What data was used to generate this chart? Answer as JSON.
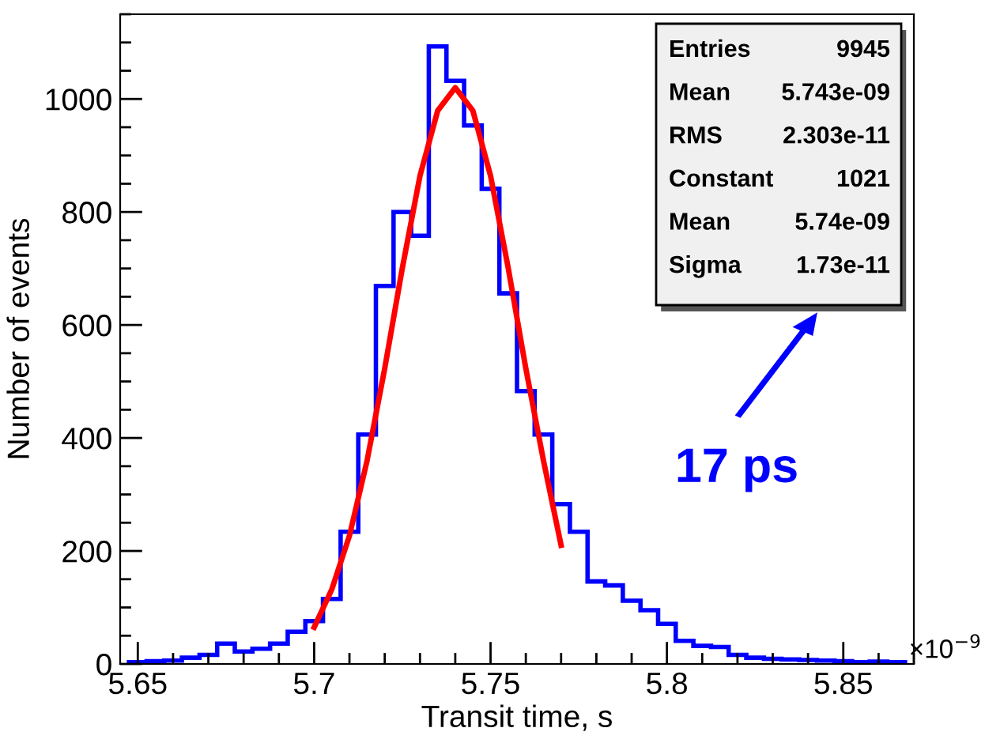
{
  "chart_data": {
    "type": "histogram",
    "xlabel": "Transit time, s",
    "ylabel": "Number of events",
    "bins": [
      5.6475,
      5.6525,
      5.6575,
      5.6625,
      5.6675,
      5.6725,
      5.6775,
      5.6825,
      5.6875,
      5.6925,
      5.6975,
      5.7025,
      5.7075,
      5.7125,
      5.7175,
      5.7225,
      5.7275,
      5.7325,
      5.7375,
      5.7425,
      5.7475,
      5.7525,
      5.7575,
      5.7625,
      5.7675,
      5.7725,
      5.7775,
      5.7825,
      5.7875,
      5.7925,
      5.7975,
      5.8025,
      5.8075,
      5.8125,
      5.8175,
      5.8225,
      5.8275,
      5.8325,
      5.8375,
      5.8425,
      5.8475,
      5.8525,
      5.8575,
      5.8625,
      5.8675
    ],
    "series": [
      {
        "color": "#0000ff",
        "values": [
          3,
          5,
          6,
          11,
          16,
          36,
          22,
          27,
          36,
          57,
          76,
          115,
          234,
          406,
          669,
          800,
          758,
          1093,
          1032,
          953,
          841,
          656,
          483,
          406,
          283,
          234,
          146,
          139,
          112,
          95,
          71,
          41,
          32,
          30,
          16,
          11,
          9,
          8,
          7,
          6,
          5,
          3,
          4,
          3
        ]
      },
      {
        "type": "line",
        "color": "#ff0000",
        "x": [
          5.7,
          5.705,
          5.71,
          5.715,
          5.72,
          5.725,
          5.73,
          5.735,
          5.74,
          5.745,
          5.75,
          5.755,
          5.76,
          5.765,
          5.77
        ],
        "values": [
          65,
          132,
          227,
          360,
          523,
          701,
          864,
          979,
          1020,
          979,
          864,
          701,
          523,
          360,
          210
        ]
      }
    ],
    "xlim": [
      5.645,
      5.87
    ],
    "ylim": [
      0,
      1150
    ],
    "xticks": [
      5.65,
      5.7,
      5.75,
      5.8,
      5.85
    ],
    "yticks": [
      0,
      200,
      400,
      600,
      800,
      1000
    ],
    "grid": false,
    "legend": false,
    "annotations": [
      "Entries",
      "9945",
      "Mean",
      "5.743e-09",
      "RMS",
      "2.303e-11",
      "Constant",
      "1021",
      "Mean",
      "5.74e-09",
      "Sigma",
      "1.73e-11",
      "17 ps",
      "×10$^{−9}$"
    ]
  }
}
